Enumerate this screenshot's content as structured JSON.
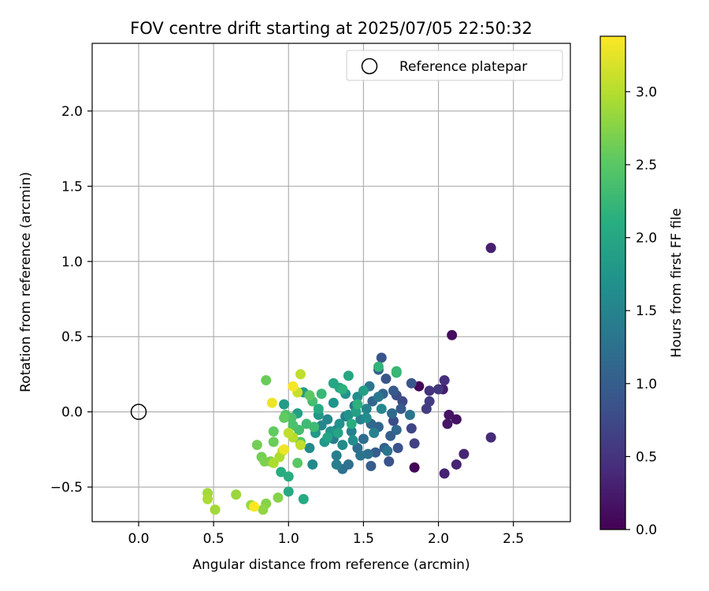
{
  "chart_data": {
    "type": "scatter",
    "title": "FOV centre drift starting at 2025/07/05 22:50:32",
    "xlabel": "Angular distance from reference (arcmin)",
    "ylabel": "Rotation from reference (arcmin)",
    "xlim": [
      -0.31,
      2.88
    ],
    "ylim": [
      -0.73,
      2.45
    ],
    "xticks": [
      0.0,
      0.5,
      1.0,
      1.5,
      2.0,
      2.5
    ],
    "xtick_labels": [
      "0.0",
      "0.5",
      "1.0",
      "1.5",
      "2.0",
      "2.5"
    ],
    "yticks": [
      -0.5,
      0.0,
      0.5,
      1.0,
      1.5,
      2.0
    ],
    "ytick_labels": [
      "−0.5",
      "0.0",
      "0.5",
      "1.0",
      "1.5",
      "2.0"
    ],
    "grid": true,
    "legend": {
      "position": "top-right",
      "entries": [
        "Reference platepar"
      ]
    },
    "reference_point": {
      "x": 0.0,
      "y": 0.0,
      "label": "Reference platepar"
    },
    "colorbar": {
      "label": "Hours from first FF file",
      "colormap": "viridis",
      "range": [
        0.0,
        3.38
      ],
      "ticks": [
        0.0,
        0.5,
        1.0,
        1.5,
        2.0,
        2.5,
        3.0
      ],
      "tick_labels": [
        "0.0",
        "0.5",
        "1.0",
        "1.5",
        "2.0",
        "2.5",
        "3.0"
      ]
    },
    "points": [
      {
        "x": 1.87,
        "y": 0.17,
        "h": 0.02
      },
      {
        "x": 1.84,
        "y": -0.37,
        "h": 0.03
      },
      {
        "x": 2.09,
        "y": 0.51,
        "h": 0.12
      },
      {
        "x": 2.12,
        "y": -0.05,
        "h": 0.15
      },
      {
        "x": 2.07,
        "y": -0.02,
        "h": 0.18
      },
      {
        "x": 2.06,
        "y": -0.08,
        "h": 0.2
      },
      {
        "x": 2.03,
        "y": 0.15,
        "h": 0.25
      },
      {
        "x": 2.35,
        "y": 1.09,
        "h": 0.3
      },
      {
        "x": 2.04,
        "y": -0.41,
        "h": 0.32
      },
      {
        "x": 2.12,
        "y": -0.35,
        "h": 0.35
      },
      {
        "x": 2.17,
        "y": -0.28,
        "h": 0.35
      },
      {
        "x": 2.35,
        "y": -0.17,
        "h": 0.4
      },
      {
        "x": 2.04,
        "y": 0.21,
        "h": 0.45
      },
      {
        "x": 1.94,
        "y": 0.14,
        "h": 0.5
      },
      {
        "x": 2.0,
        "y": 0.15,
        "h": 0.55
      },
      {
        "x": 1.92,
        "y": 0.02,
        "h": 0.6
      },
      {
        "x": 1.94,
        "y": 0.07,
        "h": 0.6
      },
      {
        "x": 1.84,
        "y": -0.21,
        "h": 0.65
      },
      {
        "x": 1.82,
        "y": -0.11,
        "h": 0.7
      },
      {
        "x": 1.76,
        "y": 0.07,
        "h": 0.75
      },
      {
        "x": 1.72,
        "y": 0.11,
        "h": 0.8
      },
      {
        "x": 1.7,
        "y": -0.06,
        "h": 0.8
      },
      {
        "x": 1.73,
        "y": -0.24,
        "h": 0.85
      },
      {
        "x": 1.67,
        "y": -0.33,
        "h": 0.85
      },
      {
        "x": 1.82,
        "y": 0.19,
        "h": 0.9
      },
      {
        "x": 1.62,
        "y": 0.36,
        "h": 0.9
      },
      {
        "x": 1.65,
        "y": 0.22,
        "h": 0.9
      },
      {
        "x": 1.7,
        "y": 0.14,
        "h": 0.95
      },
      {
        "x": 1.75,
        "y": 0.02,
        "h": 0.95
      },
      {
        "x": 1.68,
        "y": -0.16,
        "h": 1.0
      },
      {
        "x": 1.58,
        "y": -0.27,
        "h": 1.0
      },
      {
        "x": 1.55,
        "y": -0.36,
        "h": 1.0
      },
      {
        "x": 1.64,
        "y": -0.24,
        "h": 1.05
      },
      {
        "x": 1.6,
        "y": 0.28,
        "h": 1.05
      },
      {
        "x": 1.63,
        "y": 0.12,
        "h": 1.1
      },
      {
        "x": 1.56,
        "y": 0.07,
        "h": 1.1
      },
      {
        "x": 1.6,
        "y": -0.1,
        "h": 1.1
      },
      {
        "x": 1.69,
        "y": -0.01,
        "h": 1.15
      },
      {
        "x": 1.72,
        "y": -0.12,
        "h": 1.15
      },
      {
        "x": 1.55,
        "y": -0.08,
        "h": 1.15
      },
      {
        "x": 1.5,
        "y": -0.18,
        "h": 1.2
      },
      {
        "x": 1.46,
        "y": -0.24,
        "h": 1.2
      },
      {
        "x": 1.4,
        "y": -0.35,
        "h": 1.25
      },
      {
        "x": 1.36,
        "y": -0.38,
        "h": 1.25
      },
      {
        "x": 1.53,
        "y": -0.28,
        "h": 1.25
      },
      {
        "x": 1.48,
        "y": -0.29,
        "h": 1.3
      },
      {
        "x": 1.66,
        "y": -0.26,
        "h": 1.3
      },
      {
        "x": 1.81,
        "y": -0.02,
        "h": 1.3
      },
      {
        "x": 1.6,
        "y": 0.1,
        "h": 1.35
      },
      {
        "x": 1.54,
        "y": 0.17,
        "h": 1.35
      },
      {
        "x": 1.44,
        "y": 0.04,
        "h": 1.35
      },
      {
        "x": 1.38,
        "y": -0.03,
        "h": 1.4
      },
      {
        "x": 1.32,
        "y": -0.12,
        "h": 1.4
      },
      {
        "x": 1.3,
        "y": -0.18,
        "h": 1.4
      },
      {
        "x": 1.32,
        "y": -0.29,
        "h": 1.45
      },
      {
        "x": 1.32,
        "y": -0.35,
        "h": 1.45
      },
      {
        "x": 1.42,
        "y": -0.13,
        "h": 1.45
      },
      {
        "x": 1.48,
        "y": -0.05,
        "h": 1.5
      },
      {
        "x": 1.52,
        "y": 0.02,
        "h": 1.5
      },
      {
        "x": 1.57,
        "y": -0.14,
        "h": 1.5
      },
      {
        "x": 1.62,
        "y": 0.02,
        "h": 1.55
      },
      {
        "x": 1.26,
        "y": -0.05,
        "h": 1.55
      },
      {
        "x": 1.22,
        "y": -0.09,
        "h": 1.55
      },
      {
        "x": 1.16,
        "y": -0.35,
        "h": 1.6
      },
      {
        "x": 1.14,
        "y": -0.24,
        "h": 1.6
      },
      {
        "x": 1.36,
        "y": -0.22,
        "h": 1.6
      },
      {
        "x": 1.43,
        "y": -0.19,
        "h": 1.65
      },
      {
        "x": 1.46,
        "y": 0.1,
        "h": 1.65
      },
      {
        "x": 1.52,
        "y": -0.04,
        "h": 1.65
      },
      {
        "x": 1.34,
        "y": -0.08,
        "h": 1.7
      },
      {
        "x": 1.4,
        "y": -0.02,
        "h": 1.7
      },
      {
        "x": 1.38,
        "y": 0.12,
        "h": 1.7
      },
      {
        "x": 1.3,
        "y": 0.06,
        "h": 1.75
      },
      {
        "x": 1.28,
        "y": -0.13,
        "h": 1.75
      },
      {
        "x": 1.24,
        "y": -0.2,
        "h": 1.8
      },
      {
        "x": 1.2,
        "y": -0.02,
        "h": 1.8
      },
      {
        "x": 1.18,
        "y": -0.14,
        "h": 1.8
      },
      {
        "x": 1.1,
        "y": 0.13,
        "h": 1.85
      },
      {
        "x": 0.97,
        "y": 0.05,
        "h": 1.85
      },
      {
        "x": 1.06,
        "y": -0.01,
        "h": 1.9
      },
      {
        "x": 1.5,
        "y": 0.14,
        "h": 1.9
      },
      {
        "x": 1.45,
        "y": 0.0,
        "h": 1.9
      },
      {
        "x": 1.33,
        "y": -0.14,
        "h": 1.95
      },
      {
        "x": 1.26,
        "y": -0.17,
        "h": 1.95
      },
      {
        "x": 1.4,
        "y": 0.24,
        "h": 2.0
      },
      {
        "x": 1.34,
        "y": 0.16,
        "h": 2.0
      },
      {
        "x": 1.3,
        "y": 0.19,
        "h": 2.0
      },
      {
        "x": 1.2,
        "y": 0.02,
        "h": 2.05
      },
      {
        "x": 1.0,
        "y": -0.53,
        "h": 2.05
      },
      {
        "x": 1.1,
        "y": -0.58,
        "h": 2.05
      },
      {
        "x": 1.0,
        "y": -0.43,
        "h": 2.1
      },
      {
        "x": 0.95,
        "y": -0.4,
        "h": 2.1
      },
      {
        "x": 1.42,
        "y": -0.08,
        "h": 2.1
      },
      {
        "x": 1.46,
        "y": 0.05,
        "h": 2.15
      },
      {
        "x": 1.36,
        "y": 0.15,
        "h": 2.15
      },
      {
        "x": 1.6,
        "y": 0.3,
        "h": 2.2
      },
      {
        "x": 1.72,
        "y": 0.26,
        "h": 2.2
      },
      {
        "x": 1.72,
        "y": 0.27,
        "h": 2.25
      },
      {
        "x": 1.22,
        "y": 0.12,
        "h": 2.25
      },
      {
        "x": 1.17,
        "y": -0.1,
        "h": 2.3
      },
      {
        "x": 1.12,
        "y": -0.08,
        "h": 2.3
      },
      {
        "x": 1.07,
        "y": -0.12,
        "h": 2.35
      },
      {
        "x": 1.16,
        "y": 0.07,
        "h": 2.35
      },
      {
        "x": 1.02,
        "y": -0.04,
        "h": 2.4
      },
      {
        "x": 1.03,
        "y": -0.09,
        "h": 2.4
      },
      {
        "x": 0.98,
        "y": -0.02,
        "h": 2.45
      },
      {
        "x": 1.08,
        "y": -0.2,
        "h": 2.45
      },
      {
        "x": 1.06,
        "y": -0.34,
        "h": 2.5
      },
      {
        "x": 1.14,
        "y": 0.11,
        "h": 2.5
      },
      {
        "x": 0.97,
        "y": -0.04,
        "h": 2.55
      },
      {
        "x": 0.9,
        "y": -0.13,
        "h": 2.55
      },
      {
        "x": 0.9,
        "y": -0.2,
        "h": 2.6
      },
      {
        "x": 0.85,
        "y": 0.21,
        "h": 2.6
      },
      {
        "x": 0.79,
        "y": -0.22,
        "h": 2.65
      },
      {
        "x": 0.82,
        "y": -0.3,
        "h": 2.65
      },
      {
        "x": 0.84,
        "y": -0.33,
        "h": 2.7
      },
      {
        "x": 0.88,
        "y": -0.33,
        "h": 2.7
      },
      {
        "x": 0.93,
        "y": -0.57,
        "h": 2.75
      },
      {
        "x": 0.85,
        "y": -0.61,
        "h": 2.75
      },
      {
        "x": 0.83,
        "y": -0.65,
        "h": 2.8
      },
      {
        "x": 0.75,
        "y": -0.62,
        "h": 2.85
      },
      {
        "x": 0.65,
        "y": -0.55,
        "h": 2.85
      },
      {
        "x": 0.51,
        "y": -0.65,
        "h": 2.9
      },
      {
        "x": 0.46,
        "y": -0.54,
        "h": 2.9
      },
      {
        "x": 0.46,
        "y": -0.58,
        "h": 2.95
      },
      {
        "x": 0.9,
        "y": -0.34,
        "h": 2.95
      },
      {
        "x": 0.94,
        "y": -0.3,
        "h": 2.95
      },
      {
        "x": 0.96,
        "y": -0.26,
        "h": 3.0
      },
      {
        "x": 1.03,
        "y": -0.17,
        "h": 3.0
      },
      {
        "x": 1.08,
        "y": 0.25,
        "h": 3.05
      },
      {
        "x": 1.08,
        "y": -0.22,
        "h": 3.05
      },
      {
        "x": 1.0,
        "y": -0.14,
        "h": 3.05
      },
      {
        "x": 1.06,
        "y": 0.13,
        "h": 3.1
      },
      {
        "x": 0.97,
        "y": -0.25,
        "h": 3.3
      },
      {
        "x": 0.89,
        "y": 0.06,
        "h": 3.3
      },
      {
        "x": 1.03,
        "y": 0.17,
        "h": 3.35
      },
      {
        "x": 0.77,
        "y": -0.63,
        "h": 3.38
      }
    ]
  }
}
